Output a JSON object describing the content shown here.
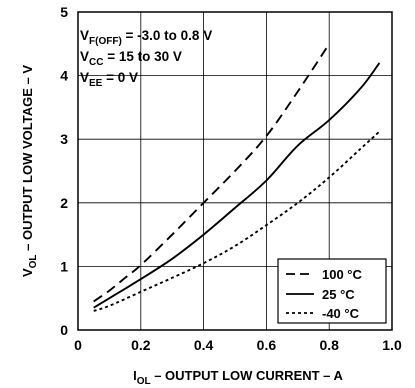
{
  "chart_data": {
    "type": "line",
    "xlabel": {
      "prefix": "I",
      "subscript": "OL",
      "suffix": " – OUTPUT LOW CURRENT – A"
    },
    "ylabel": {
      "prefix": "V",
      "subscript": "OL",
      "suffix": " – OUTPUT LOW VOLTAGE – V"
    },
    "xlim": [
      0,
      1.0
    ],
    "ylim": [
      0,
      5
    ],
    "xticks": [
      0,
      0.2,
      0.4,
      0.6,
      0.8,
      1.0
    ],
    "xtick_labels": [
      "0",
      "0.2",
      "0.4",
      "0.6",
      "0.8",
      "1.0"
    ],
    "yticks": [
      0,
      1,
      2,
      3,
      4,
      5
    ],
    "ytick_labels": [
      "0",
      "1",
      "2",
      "3",
      "4",
      "5"
    ],
    "grid": true,
    "legend_position": "bottom-right",
    "annotations": [
      {
        "prefix": "V",
        "subscript": "F(OFF)",
        "suffix": " = -3.0 to 0.8 V"
      },
      {
        "prefix": "V",
        "subscript": "CC",
        "suffix": " = 15 to 30 V"
      },
      {
        "prefix": "V",
        "subscript": "EE",
        "suffix": " = 0 V"
      }
    ],
    "series": [
      {
        "name": "100 °C",
        "style": "dashed",
        "x": [
          0.05,
          0.1,
          0.15,
          0.2,
          0.3,
          0.4,
          0.5,
          0.6,
          0.7,
          0.8
        ],
        "y": [
          0.45,
          0.62,
          0.82,
          1.02,
          1.5,
          2.0,
          2.5,
          3.05,
          3.75,
          4.5
        ]
      },
      {
        "name": "25 °C",
        "style": "solid",
        "x": [
          0.05,
          0.1,
          0.2,
          0.3,
          0.4,
          0.5,
          0.6,
          0.7,
          0.8,
          0.9,
          0.96
        ],
        "y": [
          0.35,
          0.5,
          0.8,
          1.12,
          1.5,
          1.92,
          2.35,
          2.9,
          3.3,
          3.8,
          4.2
        ]
      },
      {
        "name": "-40 °C",
        "style": "dotted",
        "x": [
          0.05,
          0.1,
          0.2,
          0.3,
          0.4,
          0.5,
          0.6,
          0.7,
          0.8,
          0.9,
          0.96
        ],
        "y": [
          0.3,
          0.38,
          0.6,
          0.82,
          1.05,
          1.32,
          1.65,
          2.0,
          2.4,
          2.85,
          3.12
        ]
      }
    ]
  }
}
